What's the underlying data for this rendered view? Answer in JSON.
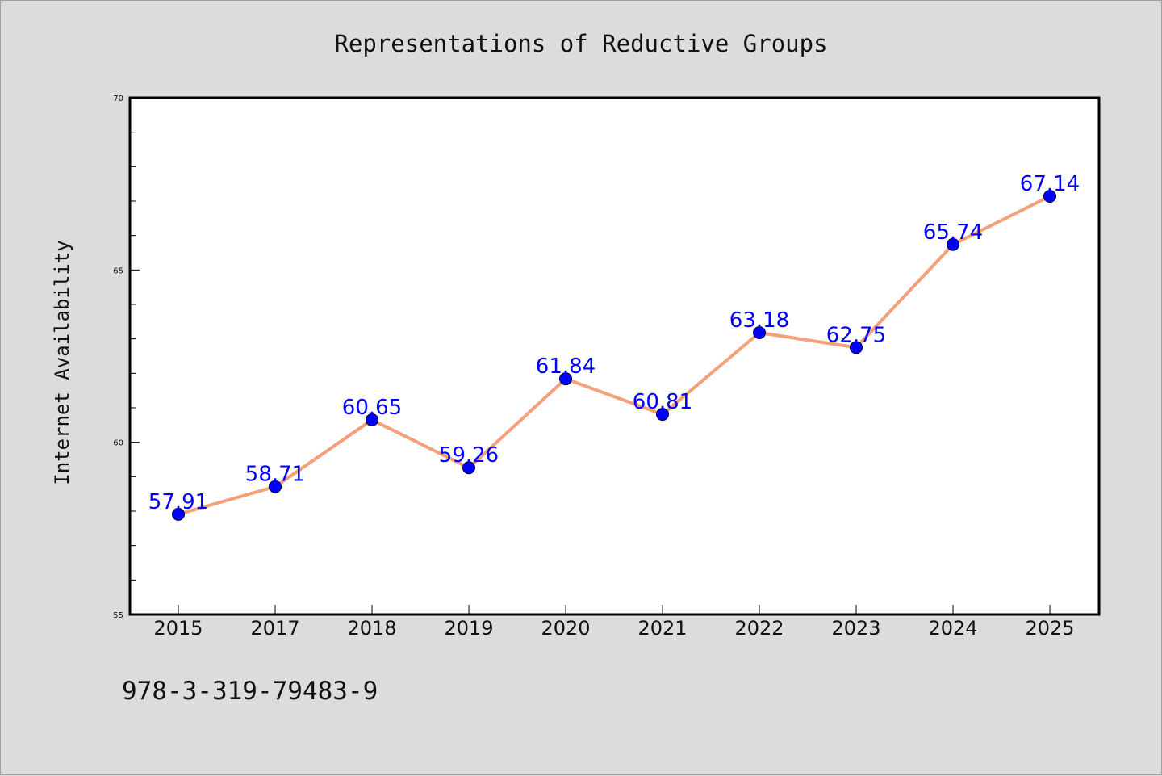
{
  "chart_data": {
    "type": "line",
    "title": "Representations of Reductive Groups",
    "xlabel": "",
    "ylabel": "Internet Availability",
    "categories": [
      "2015",
      "2017",
      "2018",
      "2019",
      "2020",
      "2021",
      "2022",
      "2023",
      "2024",
      "2025"
    ],
    "series": [
      {
        "values": [
          57.91,
          58.71,
          60.65,
          59.26,
          61.84,
          60.81,
          63.18,
          62.75,
          65.74,
          67.14
        ],
        "labels": [
          "57.91",
          "58.71",
          "60.65",
          "59.26",
          "61.84",
          "60.81",
          "63.18",
          "62.75",
          "65.74",
          "67.14"
        ],
        "line_color": "#f4a07a",
        "marker_color": "#0000ff",
        "label_color": "#0000ff"
      }
    ],
    "ylim": [
      55,
      70
    ],
    "yticks": [
      "55",
      "60",
      "65",
      "70"
    ],
    "grid": false,
    "background": "#dcdcdc",
    "plot_background": "#ffffff"
  },
  "footnote": "978-3-319-79483-9"
}
